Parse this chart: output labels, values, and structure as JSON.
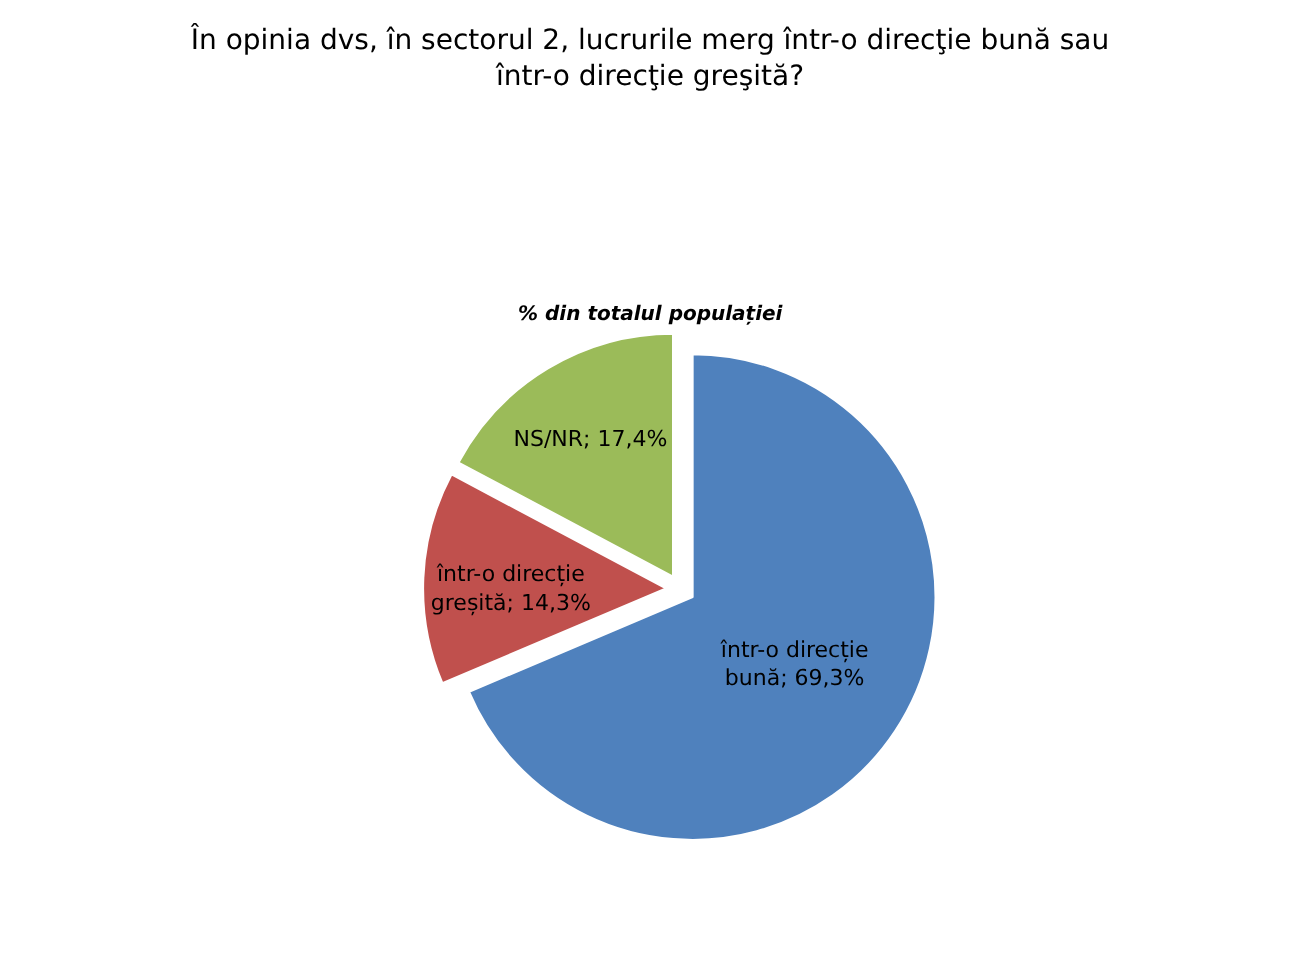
{
  "chart_data": {
    "type": "pie",
    "title": "În opinia dvs, în sectorul 2, lucrurile merg într-o direcţie bună sau într-o direcţie greşită?",
    "subtitle": "% din totalul populației",
    "categories": [
      "într-o direcție bună",
      "într-o direcție greșită",
      "NS/NR"
    ],
    "values": [
      69.3,
      14.3,
      17.4
    ],
    "value_labels": [
      "69,3%",
      "14,3%",
      "17,4%"
    ],
    "colors": [
      "#4f81bd",
      "#c0504d",
      "#9bbb59"
    ],
    "legend": false
  }
}
